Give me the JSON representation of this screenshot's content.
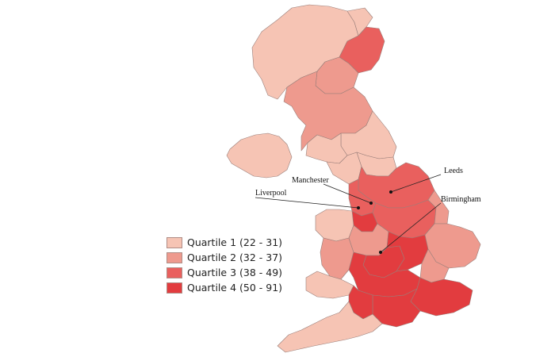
{
  "legend": {
    "items": [
      {
        "label": "Quartile 1 (22 - 31)",
        "color": "#f6c4b4"
      },
      {
        "label": "Quartile 2 (32 - 37)",
        "color": "#ee9a8e"
      },
      {
        "label": "Quartile 3 (38 - 49)",
        "color": "#e9605e"
      },
      {
        "label": "Quartile 4 (50 - 91)",
        "color": "#e23c3f"
      }
    ]
  },
  "cities": {
    "manchester": "Manchester",
    "liverpool": "Liverpool",
    "leeds": "Leeds",
    "birmingham": "Birmingham"
  }
}
